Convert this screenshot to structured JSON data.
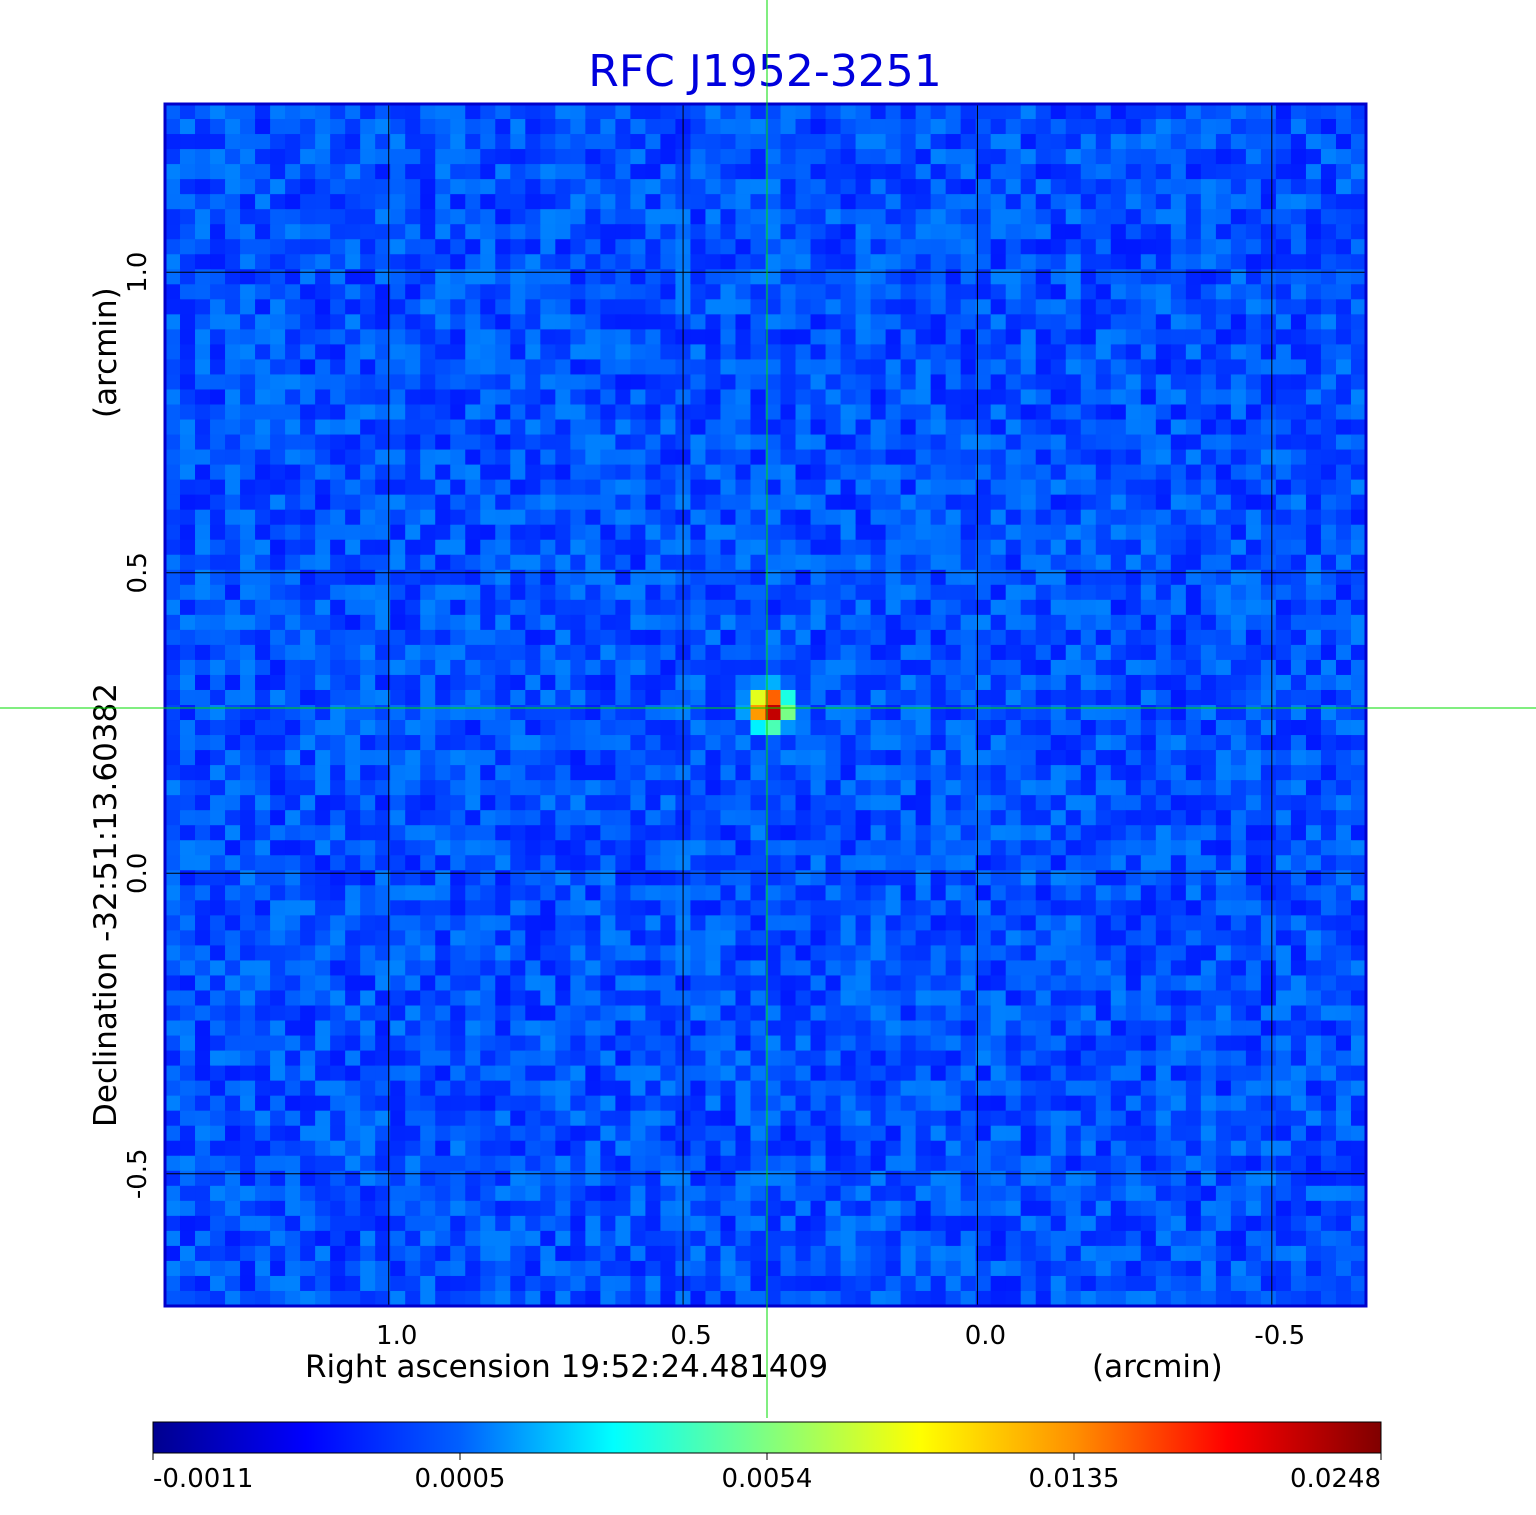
{
  "chart_data": {
    "type": "heatmap",
    "title": "RFC J1952-3251",
    "xlabel": "Right ascension  19:52:24.481409",
    "xunit": "(arcmin)",
    "ylabel": "Declination  -32:51:13.60382",
    "yunit": "(arcmin)",
    "xlim": [
      1.38,
      -0.66
    ],
    "ylim": [
      -0.72,
      1.28
    ],
    "x_ticks": [
      1.0,
      0.5,
      0.0,
      -0.5
    ],
    "x_tick_labels": [
      "1.0",
      "0.5",
      "0.0",
      "-0.5"
    ],
    "y_ticks": [
      1.0,
      0.5,
      0.0,
      -0.5
    ],
    "y_tick_labels": [
      "1.0",
      "0.5",
      "0.0",
      "-0.5"
    ],
    "grid": true,
    "crosshair": {
      "x": 0.353,
      "y": 0.275
    },
    "background_level": 0.0002,
    "peak": {
      "x": 0.353,
      "y": 0.275,
      "value": 0.0248
    },
    "colorbar": {
      "colormap": "jet",
      "tick_labels": [
        "-0.0011",
        "0.0005",
        "0.0054",
        "0.0135",
        "0.0248"
      ],
      "tick_values": [
        -0.0011,
        0.0005,
        0.0054,
        0.0135,
        0.0248
      ]
    },
    "colors": {
      "title": "#0000dd",
      "frame": "#0000cc",
      "grid": "#000000",
      "crosshair": "#00dd00"
    }
  }
}
